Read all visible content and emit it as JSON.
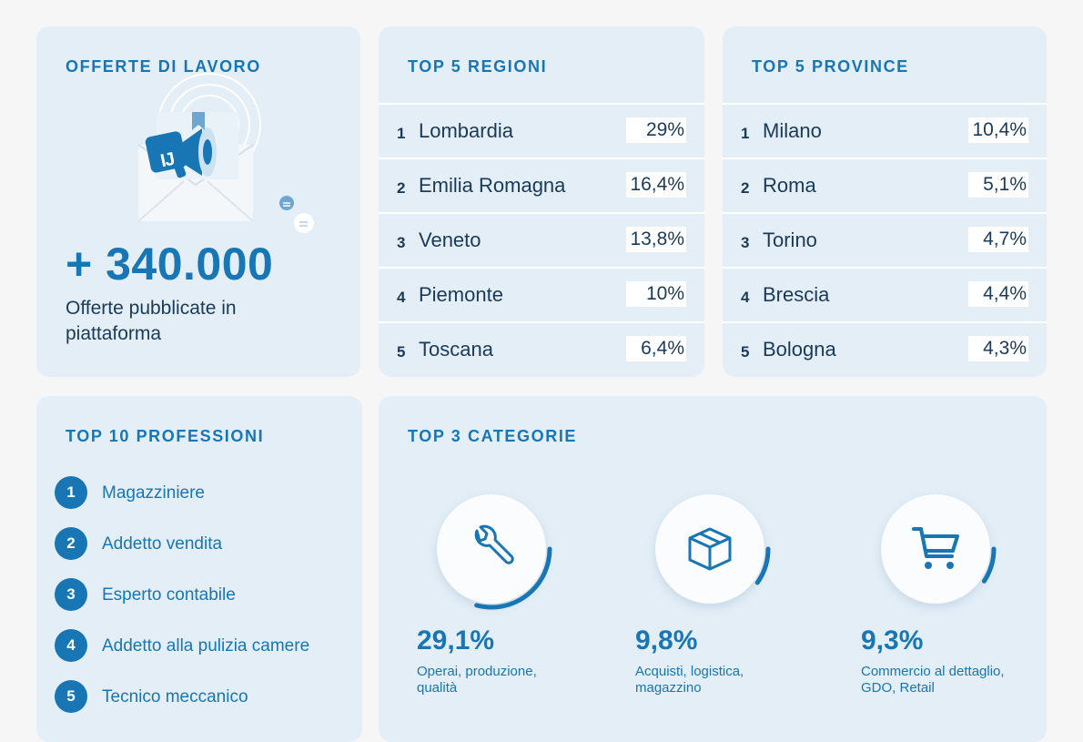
{
  "offerte": {
    "heading": "OFFERTE DI LAVORO",
    "count": "+ 340.000",
    "subtitle": "Offerte pubblicate in piattaforma",
    "logo_text": "IJ"
  },
  "regioni": {
    "heading": "TOP 5 REGIONI",
    "items": [
      {
        "rank": "1",
        "name": "Lombardia",
        "pct": "29%"
      },
      {
        "rank": "2",
        "name": "Emilia Romagna",
        "pct": "16,4%"
      },
      {
        "rank": "3",
        "name": "Veneto",
        "pct": "13,8%"
      },
      {
        "rank": "4",
        "name": "Piemonte",
        "pct": "10%"
      },
      {
        "rank": "5",
        "name": "Toscana",
        "pct": "6,4%"
      }
    ]
  },
  "province": {
    "heading": "TOP 5 PROVINCE",
    "items": [
      {
        "rank": "1",
        "name": "Milano",
        "pct": "10,4%"
      },
      {
        "rank": "2",
        "name": "Roma",
        "pct": "5,1%"
      },
      {
        "rank": "3",
        "name": "Torino",
        "pct": "4,7%"
      },
      {
        "rank": "4",
        "name": "Brescia",
        "pct": "4,4%"
      },
      {
        "rank": "5",
        "name": "Bologna",
        "pct": "4,3%"
      }
    ]
  },
  "professioni": {
    "heading": "TOP 10 PROFESSIONI",
    "items": [
      {
        "rank": "1",
        "label": "Magazziniere"
      },
      {
        "rank": "2",
        "label": "Addetto vendita"
      },
      {
        "rank": "3",
        "label": "Esperto contabile"
      },
      {
        "rank": "4",
        "label": "Addetto alla pulizia camere"
      },
      {
        "rank": "5",
        "label": "Tecnico meccanico"
      }
    ]
  },
  "categorie": {
    "heading": "TOP 3 CATEGORIE",
    "items": [
      {
        "value": "29,1%",
        "fraction": 0.291,
        "desc": "Operai, produzione, qualità",
        "icon": "wrench-icon"
      },
      {
        "value": "9,8%",
        "fraction": 0.098,
        "desc": "Acquisti, logistica, magazzino",
        "icon": "box-icon"
      },
      {
        "value": "9,3%",
        "fraction": 0.093,
        "desc": "Commercio al dettaglio, GDO, Retail",
        "icon": "shopping-cart-icon"
      }
    ]
  },
  "colors": {
    "accent": "#1876b4",
    "card": "#e3eef7",
    "text": "#1b3a57"
  }
}
